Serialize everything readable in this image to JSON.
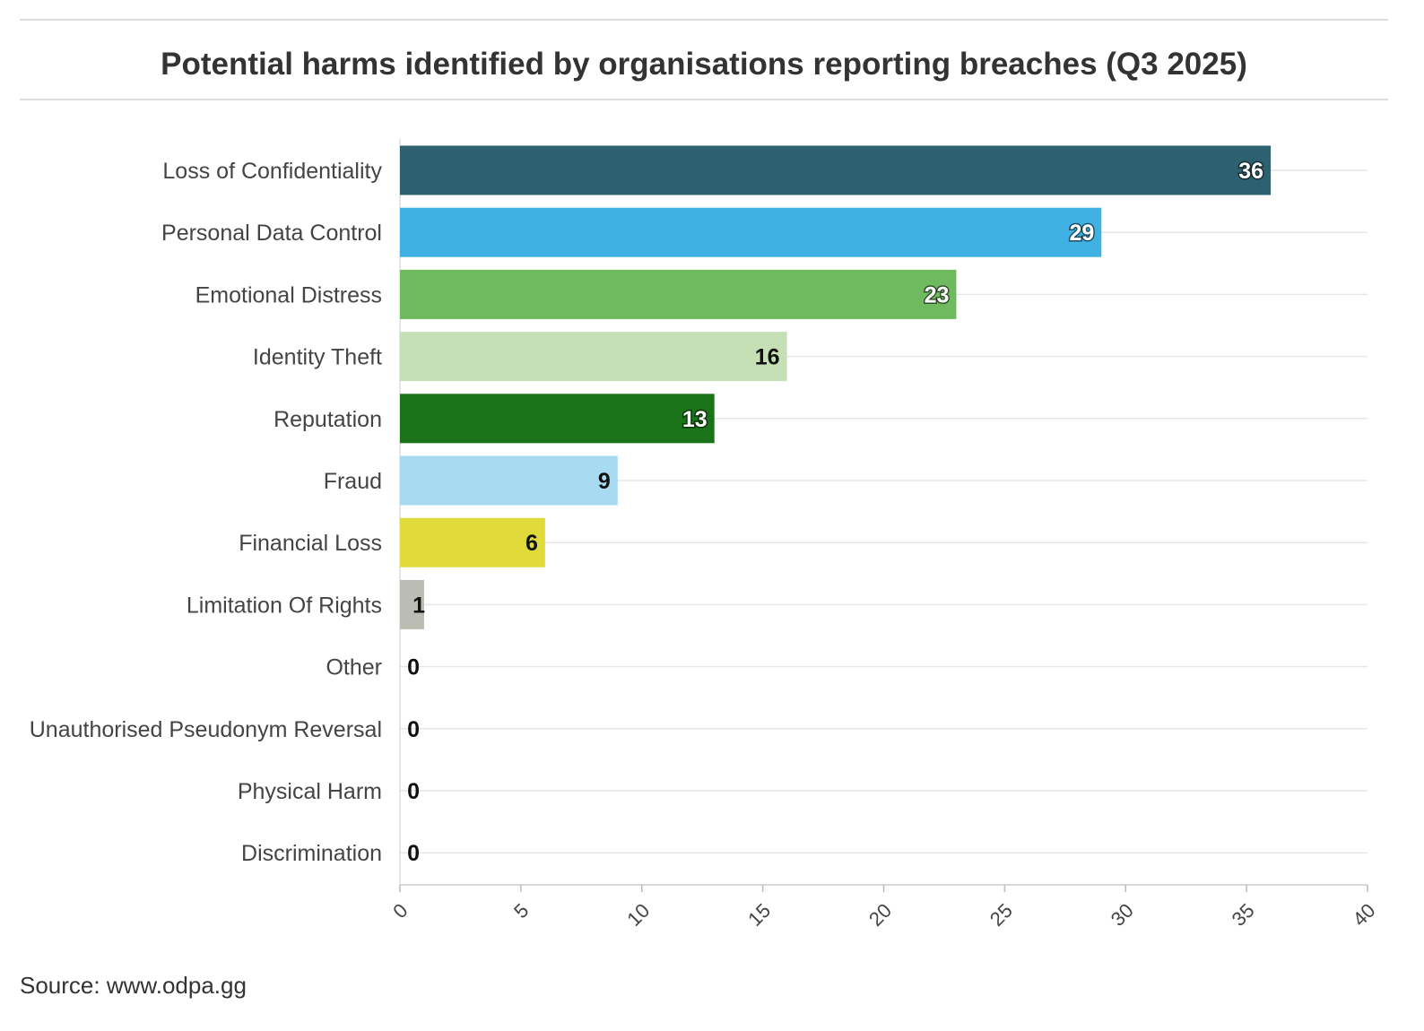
{
  "chart_data": {
    "type": "bar",
    "orientation": "horizontal",
    "title": "Potential harms identified by organisations reporting breaches (Q3 2025)",
    "source": "Source: www.odpa.gg",
    "categories": [
      "Loss of Confidentiality",
      "Personal Data Control",
      "Emotional Distress",
      "Identity Theft",
      "Reputation",
      "Fraud",
      "Financial Loss",
      "Limitation Of Rights",
      "Other",
      "Unauthorised Pseudonym Reversal",
      "Physical Harm",
      "Discrimination"
    ],
    "values": [
      36,
      29,
      23,
      16,
      13,
      9,
      6,
      1,
      0,
      0,
      0,
      0
    ],
    "colors": [
      "#2e6170",
      "#3fb1e3",
      "#6fb95e",
      "#c5e0b4",
      "#1a7219",
      "#a8daf1",
      "#e0da3b",
      "#bcbdb2",
      "#cccccc",
      "#cccccc",
      "#cccccc",
      "#cccccc"
    ],
    "label_colors": [
      "#ffffff",
      "#ffffff",
      "#ffffff",
      "#111111",
      "#ffffff",
      "#111111",
      "#111111",
      "#111111",
      "#111111",
      "#111111",
      "#111111",
      "#111111"
    ],
    "xlim": [
      0,
      40
    ],
    "xticks": [
      0,
      5,
      10,
      15,
      20,
      25,
      30,
      35,
      40
    ],
    "grid": true,
    "xlabel": "",
    "ylabel": ""
  }
}
